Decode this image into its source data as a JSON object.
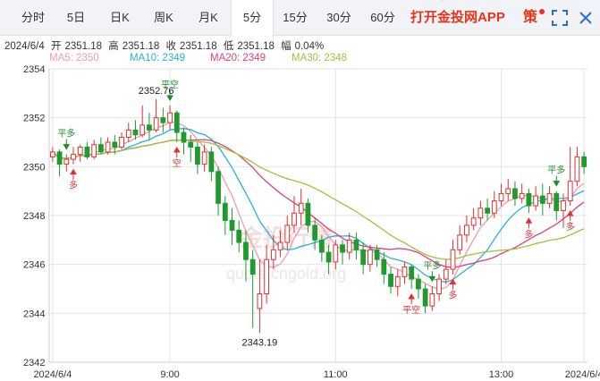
{
  "tabs": [
    {
      "label": "分时",
      "active": false
    },
    {
      "label": "5日",
      "active": false
    },
    {
      "label": "日K",
      "active": false
    },
    {
      "label": "周K",
      "active": false
    },
    {
      "label": "月K",
      "active": false
    },
    {
      "label": "5分",
      "active": true
    },
    {
      "label": "15分",
      "active": false
    },
    {
      "label": "30分",
      "active": false
    },
    {
      "label": "60分",
      "active": false
    }
  ],
  "app_link": "打开金投网APP",
  "strategy_label": "策",
  "icons": [
    "expand-icon",
    "close-icon"
  ],
  "info": {
    "date": "2024/6/4",
    "open_label": "开",
    "open": "2351.18",
    "high_label": "高",
    "high": "2351.18",
    "close_label": "收",
    "close": "2351.18",
    "low_label": "低",
    "low": "2351.18",
    "amp_label": "幅",
    "amp": "0.04%"
  },
  "ma_legend": [
    {
      "label": "MA5: 2350",
      "color": "#f29aae"
    },
    {
      "label": "MA10: 2349",
      "color": "#2ab0e0"
    },
    {
      "label": "MA20: 2349",
      "color": "#e0407a"
    },
    {
      "label": "MA30: 2348",
      "color": "#a0c23c"
    }
  ],
  "colors": {
    "up": "#e03030",
    "down": "#1f9a2e",
    "grid": "#e5e5e5",
    "signal": "#1f8a2e"
  },
  "chart_data": {
    "type": "candlestick",
    "ylim": [
      2342,
      2354
    ],
    "yticks": [
      2342,
      2344,
      2346,
      2348,
      2350,
      2352,
      2354
    ],
    "xticks": [
      {
        "index": 0,
        "label": "2024/6/4"
      },
      {
        "index": 17,
        "label": "9:00"
      },
      {
        "index": 41,
        "label": "11:00"
      },
      {
        "index": 65,
        "label": "13:00"
      },
      {
        "index": 77,
        "label": "2024/6/4"
      }
    ],
    "candles": [
      [
        2350.4,
        2350.6,
        2350.8,
        2350.2
      ],
      [
        2350.6,
        2350.1,
        2350.7,
        2349.6
      ],
      [
        2350.1,
        2350.3,
        2350.5,
        2349.8
      ],
      [
        2350.3,
        2350.5,
        2350.8,
        2350.1
      ],
      [
        2350.5,
        2350.8,
        2350.9,
        2350.2
      ],
      [
        2350.8,
        2350.4,
        2351.0,
        2350.3
      ],
      [
        2350.4,
        2350.9,
        2351.1,
        2350.3
      ],
      [
        2350.9,
        2350.6,
        2351.2,
        2350.5
      ],
      [
        2350.6,
        2351.0,
        2351.2,
        2350.5
      ],
      [
        2351.0,
        2350.8,
        2351.3,
        2350.5
      ],
      [
        2350.8,
        2351.2,
        2351.4,
        2350.7
      ],
      [
        2351.2,
        2351.5,
        2351.8,
        2351.0
      ],
      [
        2351.5,
        2351.3,
        2351.9,
        2351.1
      ],
      [
        2351.3,
        2351.7,
        2352.5,
        2351.2
      ],
      [
        2351.7,
        2351.5,
        2352.2,
        2351.1
      ],
      [
        2351.5,
        2352.0,
        2352.76,
        2351.4
      ],
      [
        2352.0,
        2351.8,
        2352.4,
        2351.4
      ],
      [
        2351.8,
        2352.2,
        2352.5,
        2351.5
      ],
      [
        2352.2,
        2351.4,
        2352.3,
        2351.0
      ],
      [
        2351.4,
        2351.0,
        2351.6,
        2350.5
      ],
      [
        2351.0,
        2350.8,
        2351.3,
        2350.2
      ],
      [
        2350.8,
        2350.1,
        2351.0,
        2349.7
      ],
      [
        2350.1,
        2350.6,
        2350.9,
        2349.8
      ],
      [
        2350.6,
        2349.8,
        2350.8,
        2349.4
      ],
      [
        2349.8,
        2348.5,
        2350.0,
        2348.0
      ],
      [
        2348.5,
        2347.8,
        2348.8,
        2347.2
      ],
      [
        2347.8,
        2347.4,
        2348.3,
        2346.8
      ],
      [
        2347.4,
        2346.9,
        2347.8,
        2346.5
      ],
      [
        2346.9,
        2346.2,
        2347.4,
        2345.3
      ],
      [
        2346.2,
        2345.6,
        2346.6,
        2343.4
      ],
      [
        2344.2,
        2344.8,
        2346.2,
        2343.19
      ],
      [
        2344.8,
        2346.2,
        2346.8,
        2344.4
      ],
      [
        2346.2,
        2346.6,
        2347.2,
        2345.8
      ],
      [
        2346.6,
        2346.9,
        2347.4,
        2346.3
      ],
      [
        2346.9,
        2347.6,
        2348.0,
        2346.6
      ],
      [
        2347.6,
        2348.1,
        2348.8,
        2347.3
      ],
      [
        2348.1,
        2348.5,
        2349.1,
        2347.6
      ],
      [
        2348.5,
        2347.6,
        2348.7,
        2347.3
      ],
      [
        2347.6,
        2347.0,
        2347.9,
        2346.6
      ],
      [
        2347.0,
        2346.5,
        2347.2,
        2346.1
      ],
      [
        2346.5,
        2346.1,
        2346.8,
        2345.6
      ],
      [
        2346.1,
        2346.8,
        2347.0,
        2345.8
      ],
      [
        2346.8,
        2346.5,
        2347.0,
        2346.0
      ],
      [
        2346.5,
        2347.0,
        2347.3,
        2346.2
      ],
      [
        2347.0,
        2346.6,
        2347.3,
        2346.2
      ],
      [
        2346.6,
        2346.0,
        2346.9,
        2345.6
      ],
      [
        2346.0,
        2346.6,
        2346.8,
        2345.7
      ],
      [
        2346.6,
        2346.2,
        2346.8,
        2345.9
      ],
      [
        2346.2,
        2345.6,
        2346.5,
        2345.2
      ],
      [
        2345.6,
        2345.1,
        2345.9,
        2344.8
      ],
      [
        2345.1,
        2345.5,
        2345.8,
        2344.7
      ],
      [
        2345.5,
        2345.9,
        2346.1,
        2345.2
      ],
      [
        2345.9,
        2345.4,
        2346.0,
        2345.0
      ],
      [
        2345.4,
        2345.0,
        2345.6,
        2344.6
      ],
      [
        2345.0,
        2344.3,
        2345.2,
        2344.0
      ],
      [
        2344.3,
        2344.8,
        2345.1,
        2344.1
      ],
      [
        2344.8,
        2345.4,
        2345.6,
        2344.5
      ],
      [
        2345.4,
        2345.8,
        2346.2,
        2345.2
      ],
      [
        2345.8,
        2346.6,
        2347.0,
        2345.6
      ],
      [
        2346.6,
        2347.2,
        2347.6,
        2346.4
      ],
      [
        2347.2,
        2347.6,
        2348.0,
        2346.9
      ],
      [
        2347.6,
        2347.9,
        2348.3,
        2347.4
      ],
      [
        2347.9,
        2348.3,
        2348.6,
        2347.6
      ],
      [
        2348.3,
        2348.1,
        2348.7,
        2347.8
      ],
      [
        2348.1,
        2348.6,
        2349.0,
        2347.9
      ],
      [
        2348.6,
        2348.9,
        2349.3,
        2348.4
      ],
      [
        2348.9,
        2349.1,
        2349.5,
        2348.6
      ],
      [
        2349.1,
        2348.7,
        2349.4,
        2348.4
      ],
      [
        2348.7,
        2348.9,
        2349.3,
        2348.5
      ],
      [
        2348.9,
        2348.4,
        2349.1,
        2348.1
      ],
      [
        2348.4,
        2348.8,
        2349.2,
        2348.2
      ],
      [
        2348.8,
        2348.5,
        2349.3,
        2348.0
      ],
      [
        2348.5,
        2348.9,
        2349.2,
        2348.3
      ],
      [
        2348.9,
        2348.2,
        2349.0,
        2347.8
      ],
      [
        2348.2,
        2348.6,
        2348.9,
        2347.5
      ],
      [
        2348.6,
        2349.4,
        2350.8,
        2348.4
      ],
      [
        2349.4,
        2350.4,
        2350.8,
        2349.2
      ],
      [
        2350.4,
        2350.0,
        2350.6,
        2349.7
      ]
    ],
    "annotations": [
      {
        "text": "2352.76",
        "kind": "high"
      },
      {
        "text": "2343.19",
        "kind": "low"
      }
    ],
    "signals": [
      "平多",
      "多",
      "平空",
      "空",
      "平空",
      "平多",
      "多",
      "多",
      "平多",
      "多"
    ],
    "watermark": "金投行情 quote.cngold.org"
  }
}
